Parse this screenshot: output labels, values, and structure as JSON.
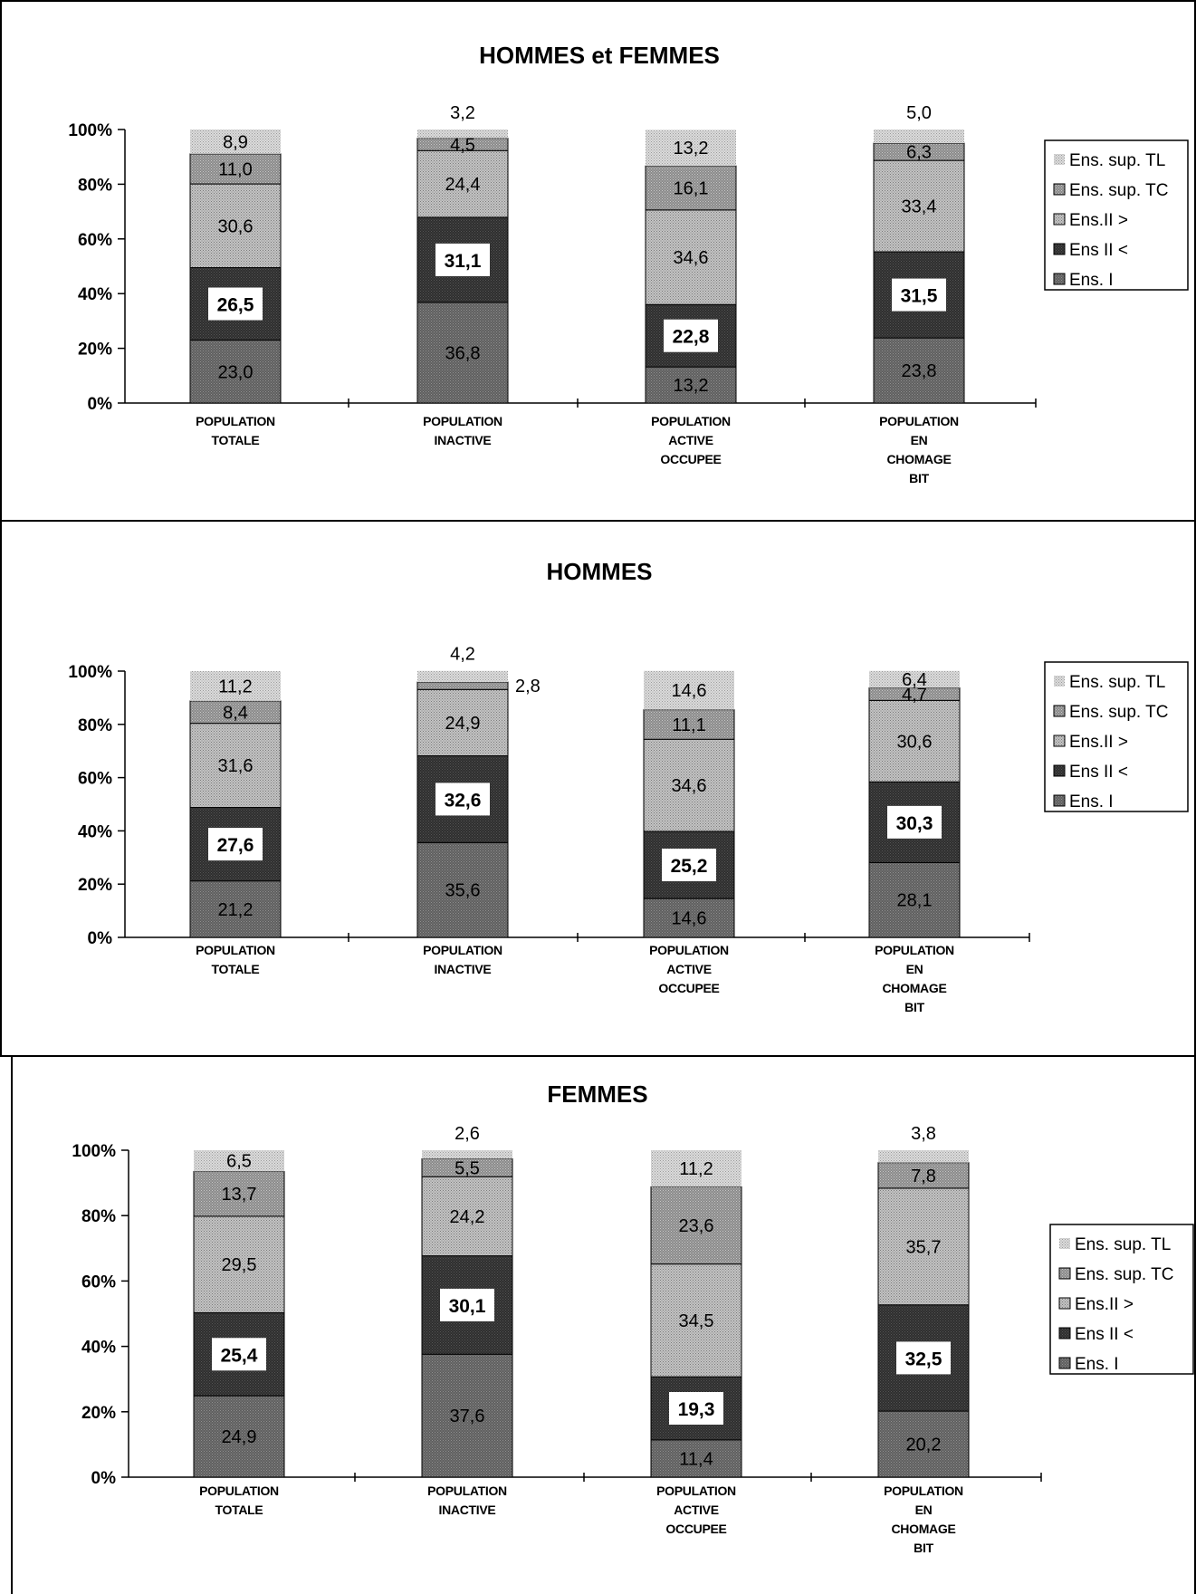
{
  "colors": {
    "ens_sup_tl": "#dcdcdc",
    "ens_sup_tc": "#8a8a8a",
    "ens_ii_gt": "#c4c4c4",
    "ens_ii_lt": "#2e2e2e",
    "ens_i": "#5f5f5f",
    "axis": "#000000"
  },
  "chart_data": [
    {
      "type": "bar",
      "stacked": true,
      "title": "HOMMES et FEMMES",
      "xlabel": "",
      "ylabel": "",
      "ylim": [
        0,
        100
      ],
      "yticks": [
        "0%",
        "20%",
        "40%",
        "60%",
        "80%",
        "100%"
      ],
      "grid": false,
      "legend_position": "right",
      "categories": [
        [
          "POPULATION",
          "TOTALE"
        ],
        [
          "POPULATION",
          "INACTIVE"
        ],
        [
          "POPULATION",
          "ACTIVE",
          "OCCUPEE"
        ],
        [
          "POPULATION",
          "EN",
          "CHOMAGE",
          "BIT"
        ]
      ],
      "legend": [
        "Ens. sup. TL",
        "Ens. sup. TC",
        "Ens.II >",
        "Ens II <",
        "Ens. I"
      ],
      "series": [
        {
          "name": "Ens. I",
          "color_key": "ens_i",
          "values": [
            23.0,
            36.8,
            13.2,
            23.8
          ],
          "labels": [
            "23,0",
            "36,8",
            "13,2",
            "23,8"
          ]
        },
        {
          "name": "Ens II <",
          "color_key": "ens_ii_lt",
          "values": [
            26.5,
            31.1,
            22.8,
            31.5
          ],
          "labels": [
            "26,5",
            "31,1",
            "22,8",
            "31,5"
          ]
        },
        {
          "name": "Ens.II >",
          "color_key": "ens_ii_gt",
          "values": [
            30.6,
            24.4,
            34.6,
            33.4
          ],
          "labels": [
            "30,6",
            "24,4",
            "34,6",
            "33,4"
          ]
        },
        {
          "name": "Ens. sup. TC",
          "color_key": "ens_sup_tc",
          "values": [
            11.0,
            4.5,
            16.1,
            6.3
          ],
          "labels": [
            "11,0",
            "4,5",
            "16,1",
            "6,3"
          ]
        },
        {
          "name": "Ens. sup. TL",
          "color_key": "ens_sup_tl",
          "values": [
            8.9,
            3.2,
            13.2,
            5.0
          ],
          "labels": [
            "8,9",
            "3,2",
            "13,2",
            "5,0"
          ]
        }
      ]
    },
    {
      "type": "bar",
      "stacked": true,
      "title": "HOMMES",
      "xlabel": "",
      "ylabel": "",
      "ylim": [
        0,
        100
      ],
      "yticks": [
        "0%",
        "20%",
        "40%",
        "60%",
        "80%",
        "100%"
      ],
      "grid": false,
      "legend_position": "right",
      "categories": [
        [
          "POPULATION",
          "TOTALE"
        ],
        [
          "POPULATION",
          "INACTIVE"
        ],
        [
          "POPULATION",
          "ACTIVE",
          "OCCUPEE"
        ],
        [
          "POPULATION",
          "EN",
          "CHOMAGE",
          "BIT"
        ]
      ],
      "legend": [
        "Ens. sup. TL",
        "Ens. sup. TC",
        "Ens.II >",
        "Ens II <",
        "Ens. I"
      ],
      "series": [
        {
          "name": "Ens. I",
          "color_key": "ens_i",
          "values": [
            21.2,
            35.6,
            14.6,
            28.1
          ],
          "labels": [
            "21,2",
            "35,6",
            "14,6",
            "28,1"
          ]
        },
        {
          "name": "Ens II <",
          "color_key": "ens_ii_lt",
          "values": [
            27.6,
            32.6,
            25.2,
            30.3
          ],
          "labels": [
            "27,6",
            "32,6",
            "25,2",
            "30,3"
          ]
        },
        {
          "name": "Ens.II >",
          "color_key": "ens_ii_gt",
          "values": [
            31.6,
            24.9,
            34.6,
            30.6
          ],
          "labels": [
            "31,6",
            "24,9",
            "34,6",
            "30,6"
          ]
        },
        {
          "name": "Ens. sup. TC",
          "color_key": "ens_sup_tc",
          "values": [
            8.4,
            2.8,
            11.1,
            4.7
          ],
          "labels": [
            "8,4",
            "2,8",
            "11,1",
            "4,7"
          ]
        },
        {
          "name": "Ens. sup. TL",
          "color_key": "ens_sup_tl",
          "values": [
            11.2,
            4.2,
            14.6,
            6.4
          ],
          "labels": [
            "11,2",
            "4,2",
            "14,6",
            "6,4"
          ]
        }
      ]
    },
    {
      "type": "bar",
      "stacked": true,
      "title": "FEMMES",
      "xlabel": "",
      "ylabel": "",
      "ylim": [
        0,
        100
      ],
      "yticks": [
        "0%",
        "20%",
        "40%",
        "60%",
        "80%",
        "100%"
      ],
      "grid": false,
      "legend_position": "right",
      "categories": [
        [
          "POPULATION",
          "TOTALE"
        ],
        [
          "POPULATION",
          "INACTIVE"
        ],
        [
          "POPULATION",
          "ACTIVE",
          "OCCUPEE"
        ],
        [
          "POPULATION",
          "EN",
          "CHOMAGE",
          "BIT"
        ]
      ],
      "legend": [
        "Ens. sup. TL",
        "Ens. sup. TC",
        "Ens.II >",
        "Ens II <",
        "Ens. I"
      ],
      "series": [
        {
          "name": "Ens. I",
          "color_key": "ens_i",
          "values": [
            24.9,
            37.6,
            11.4,
            20.2
          ],
          "labels": [
            "24,9",
            "37,6",
            "11,4",
            "20,2"
          ]
        },
        {
          "name": "Ens II <",
          "color_key": "ens_ii_lt",
          "values": [
            25.4,
            30.1,
            19.3,
            32.5
          ],
          "labels": [
            "25,4",
            "30,1",
            "19,3",
            "32,5"
          ]
        },
        {
          "name": "Ens.II >",
          "color_key": "ens_ii_gt",
          "values": [
            29.5,
            24.2,
            34.5,
            35.7
          ],
          "labels": [
            "29,5",
            "24,2",
            "34,5",
            "35,7"
          ]
        },
        {
          "name": "Ens. sup. TC",
          "color_key": "ens_sup_tc",
          "values": [
            13.7,
            5.5,
            23.6,
            7.8
          ],
          "labels": [
            "13,7",
            "5,5",
            "23,6",
            "7,8"
          ]
        },
        {
          "name": "Ens. sup. TL",
          "color_key": "ens_sup_tl",
          "values": [
            6.5,
            2.6,
            11.2,
            3.8
          ],
          "labels": [
            "6,5",
            "2,6",
            "11,2",
            "3,8"
          ]
        }
      ]
    }
  ]
}
